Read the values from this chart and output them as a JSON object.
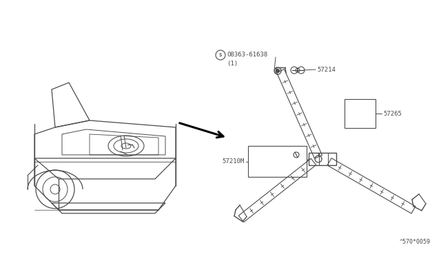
{
  "bg_color": "#ffffff",
  "line_color": "#4a4a4a",
  "thin_line": 0.6,
  "med_line": 0.9,
  "thick_line": 1.3,
  "label_fontsize": 6.5,
  "mono_font": "DejaVu Sans Mono",
  "parts": {
    "bolt_label": "08363-61638",
    "bolt_sub": "(1)",
    "p1": "57214",
    "p2": "57265",
    "p3": "57210M",
    "diag_num": "^570*0059"
  }
}
